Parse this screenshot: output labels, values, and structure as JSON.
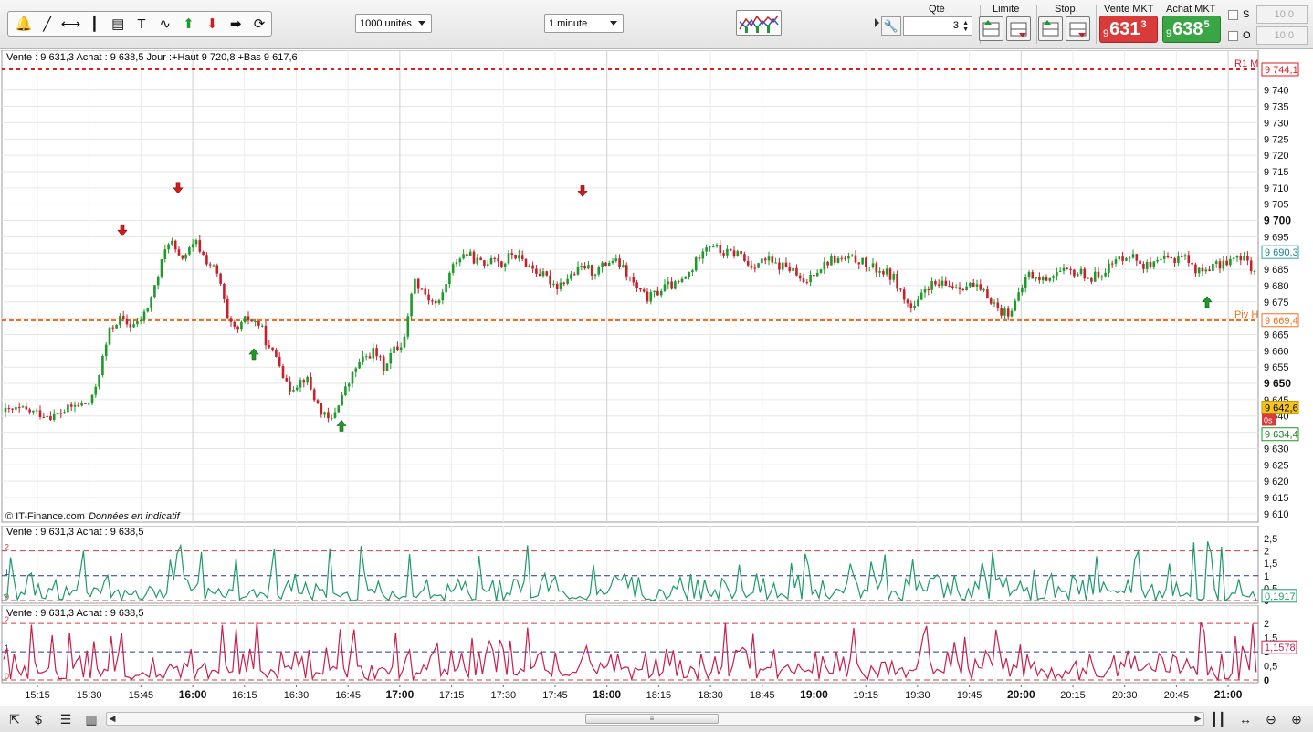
{
  "toolbar": {
    "tools": [
      {
        "icon": "alarm-bell-icon",
        "glyph": "🔔"
      },
      {
        "icon": "trend-line-icon",
        "glyph": "╱"
      },
      {
        "icon": "horizontal-line-icon",
        "glyph": "⟷"
      },
      {
        "icon": "vertical-line-icon",
        "glyph": "┃"
      },
      {
        "icon": "fibonacci-icon",
        "glyph": "▤"
      },
      {
        "icon": "text-tool-icon",
        "glyph": "T"
      },
      {
        "icon": "indicator-wave-icon",
        "glyph": "∿"
      },
      {
        "icon": "buy-arrow-icon",
        "glyph": "⬆"
      },
      {
        "icon": "sell-arrow-icon",
        "glyph": "⬇"
      },
      {
        "icon": "right-arrow-icon",
        "glyph": "➡"
      },
      {
        "icon": "cycle-icon",
        "glyph": "⟳"
      }
    ],
    "units_select": "1000 unités",
    "period_select": "1 minute"
  },
  "order": {
    "qty_label": "Qté",
    "qty_value": "3",
    "limit_label": "Limite",
    "stop_label": "Stop",
    "sell_mkt_label": "Vente MKT",
    "buy_mkt_label": "Achat MKT",
    "sell_prefix": "9",
    "sell_big": "631",
    "sell_sup": "3",
    "buy_prefix": "9",
    "buy_big": "638",
    "buy_sup": "5",
    "s_label": "S",
    "o_label": "O",
    "s_value": "10.0",
    "o_value": "10.0"
  },
  "main": {
    "info": "Vente : 9 631,3 Achat : 9 638,5 Jour :+Haut 9 720,8 +Bas 9 617,6",
    "copyright": "© IT-Finance.com",
    "copyright_note": "Données en indicatif",
    "r1_label": "R1 M",
    "r1_value": "9 744,1",
    "piv_label": "Piv H",
    "piv_value": "9 669,4",
    "last_value": "9 690,3",
    "current_value": "9 642,6",
    "current_timer": "0s",
    "low_value": "9 634,4",
    "colors": {
      "up": "#1e9a2a",
      "down": "#c8202a",
      "r1": "#e41b1b",
      "piv": "#f07020",
      "current": "#f5c518"
    }
  },
  "chart_data": {
    "type": "candlestick",
    "y_ticks": [
      "9 740",
      "9 735",
      "9 730",
      "9 725",
      "9 720",
      "9 715",
      "9 710",
      "9 705",
      "9 700",
      "9 695",
      "9 690",
      "9 685",
      "9 680",
      "9 675",
      "9 670",
      "9 665",
      "9 660",
      "9 655",
      "9 650",
      "9 645",
      "9 640",
      "9 635",
      "9 630",
      "9 625",
      "9 620",
      "9 615",
      "9 610"
    ],
    "y_bold": [
      "9 700",
      "9 650"
    ],
    "ylim": [
      9608,
      9750
    ],
    "x_ticks": [
      "15:15",
      "15:30",
      "15:45",
      "16:00",
      "16:15",
      "16:30",
      "16:45",
      "17:00",
      "17:15",
      "17:30",
      "17:45",
      "18:00",
      "18:15",
      "18:30",
      "18:45",
      "19:00",
      "19:15",
      "19:30",
      "19:45",
      "20:00",
      "20:15",
      "20:30",
      "20:45",
      "21:00"
    ],
    "x_bold": [
      "16:00",
      "17:00",
      "18:00",
      "19:00",
      "20:00",
      "21:00"
    ],
    "close_path": [
      [
        0,
        9641
      ],
      [
        20,
        9642
      ],
      [
        40,
        9641
      ],
      [
        60,
        9640
      ],
      [
        80,
        9643
      ],
      [
        100,
        9644
      ],
      [
        110,
        9655
      ],
      [
        120,
        9666
      ],
      [
        130,
        9670
      ],
      [
        140,
        9668
      ],
      [
        150,
        9668
      ],
      [
        160,
        9672
      ],
      [
        170,
        9680
      ],
      [
        180,
        9690
      ],
      [
        186,
        9695
      ],
      [
        195,
        9688
      ],
      [
        205,
        9690
      ],
      [
        215,
        9693
      ],
      [
        225,
        9688
      ],
      [
        235,
        9685
      ],
      [
        242,
        9680
      ],
      [
        250,
        9668
      ],
      [
        260,
        9666
      ],
      [
        270,
        9670
      ],
      [
        285,
        9668
      ],
      [
        295,
        9660
      ],
      [
        305,
        9658
      ],
      [
        315,
        9648
      ],
      [
        325,
        9650
      ],
      [
        335,
        9652
      ],
      [
        345,
        9645
      ],
      [
        355,
        9640
      ],
      [
        362,
        9638
      ],
      [
        372,
        9645
      ],
      [
        382,
        9650
      ],
      [
        390,
        9655
      ],
      [
        400,
        9658
      ],
      [
        410,
        9660
      ],
      [
        420,
        9655
      ],
      [
        430,
        9660
      ],
      [
        440,
        9662
      ],
      [
        446,
        9668
      ],
      [
        452,
        9682
      ],
      [
        460,
        9680
      ],
      [
        470,
        9676
      ],
      [
        480,
        9674
      ],
      [
        490,
        9682
      ],
      [
        500,
        9688
      ],
      [
        510,
        9690
      ],
      [
        520,
        9688
      ],
      [
        530,
        9686
      ],
      [
        540,
        9690
      ],
      [
        550,
        9686
      ],
      [
        560,
        9690
      ],
      [
        570,
        9688
      ],
      [
        580,
        9686
      ],
      [
        590,
        9684
      ],
      [
        600,
        9682
      ],
      [
        610,
        9680
      ],
      [
        620,
        9682
      ],
      [
        630,
        9684
      ],
      [
        640,
        9686
      ],
      [
        650,
        9684
      ],
      [
        660,
        9686
      ],
      [
        670,
        9688
      ],
      [
        680,
        9686
      ],
      [
        690,
        9682
      ],
      [
        700,
        9678
      ],
      [
        710,
        9676
      ],
      [
        720,
        9678
      ],
      [
        730,
        9680
      ],
      [
        740,
        9680
      ],
      [
        750,
        9682
      ],
      [
        760,
        9686
      ],
      [
        770,
        9692
      ],
      [
        780,
        9693
      ],
      [
        790,
        9690
      ],
      [
        800,
        9690
      ],
      [
        810,
        9690
      ],
      [
        820,
        9686
      ],
      [
        830,
        9687
      ],
      [
        840,
        9688
      ],
      [
        850,
        9686
      ],
      [
        860,
        9686
      ],
      [
        870,
        9684
      ],
      [
        880,
        9680
      ],
      [
        890,
        9684
      ],
      [
        900,
        9686
      ],
      [
        910,
        9688
      ],
      [
        920,
        9688
      ],
      [
        930,
        9688
      ],
      [
        940,
        9688
      ],
      [
        950,
        9686
      ],
      [
        960,
        9685
      ],
      [
        970,
        9684
      ],
      [
        980,
        9682
      ],
      [
        990,
        9676
      ],
      [
        1000,
        9672
      ],
      [
        1008,
        9676
      ],
      [
        1015,
        9680
      ],
      [
        1025,
        9680
      ],
      [
        1035,
        9680
      ],
      [
        1045,
        9680
      ],
      [
        1055,
        9680
      ],
      [
        1065,
        9680
      ],
      [
        1075,
        9678
      ],
      [
        1085,
        9676
      ],
      [
        1095,
        9672
      ],
      [
        1105,
        9672
      ],
      [
        1115,
        9676
      ],
      [
        1125,
        9684
      ],
      [
        1135,
        9682
      ],
      [
        1145,
        9682
      ],
      [
        1155,
        9684
      ],
      [
        1165,
        9684
      ],
      [
        1175,
        9684
      ],
      [
        1185,
        9684
      ],
      [
        1195,
        9682
      ],
      [
        1205,
        9684
      ],
      [
        1215,
        9686
      ],
      [
        1225,
        9688
      ],
      [
        1235,
        9690
      ],
      [
        1245,
        9688
      ],
      [
        1255,
        9686
      ],
      [
        1265,
        9686
      ],
      [
        1275,
        9688
      ],
      [
        1285,
        9688
      ],
      [
        1295,
        9690
      ],
      [
        1305,
        9686
      ],
      [
        1315,
        9684
      ],
      [
        1325,
        9686
      ],
      [
        1335,
        9686
      ],
      [
        1345,
        9688
      ],
      [
        1355,
        9688
      ],
      [
        1365,
        9688
      ],
      [
        1375,
        9684
      ]
    ],
    "signals_buy": [
      [
        278,
        9659
      ],
      [
        374,
        9637
      ],
      [
        1322,
        9675
      ]
    ],
    "signals_sell": [
      [
        195,
        9710
      ],
      [
        134,
        9697
      ],
      [
        638,
        9709
      ]
    ],
    "ind1": {
      "ticks": [
        "2,5",
        "2",
        "1,5",
        "1",
        "0,5",
        "0"
      ],
      "ylim": [
        0,
        2.5
      ],
      "levels": [
        {
          "v": 2,
          "label": "2",
          "color": "#d23c3c"
        },
        {
          "v": 1,
          "label": "1",
          "color": "#2232a0"
        },
        {
          "v": 0,
          "label": "0",
          "color": "#d23c3c"
        }
      ],
      "last": "0,1917",
      "color": "#1f9a6a",
      "info": "Vente : 9 631,3 Achat : 9 638,5",
      "seed": 7
    },
    "ind2": {
      "ticks": [
        "2",
        "1,5",
        "1",
        "0,5",
        "0"
      ],
      "ylim": [
        0,
        2.2
      ],
      "levels": [
        {
          "v": 2,
          "label": "2",
          "color": "#d23c3c"
        },
        {
          "v": 1,
          "label": "1",
          "color": "#2232a0"
        },
        {
          "v": 0,
          "label": "0",
          "color": "#d23c3c"
        }
      ],
      "last": "1,1578",
      "color": "#c81f4a",
      "info": "Vente : 9 631,3 Achat : 9 638,5",
      "seed": 13
    }
  },
  "bottom": {
    "icons": [
      "cursor-icon",
      "dollar-icon",
      "list-icon",
      "candles-icon",
      "scroll-left-icon",
      "scroll-right-icon",
      "candle-settings-icon",
      "zoom-out-icon",
      "zoom-in-icon"
    ]
  }
}
